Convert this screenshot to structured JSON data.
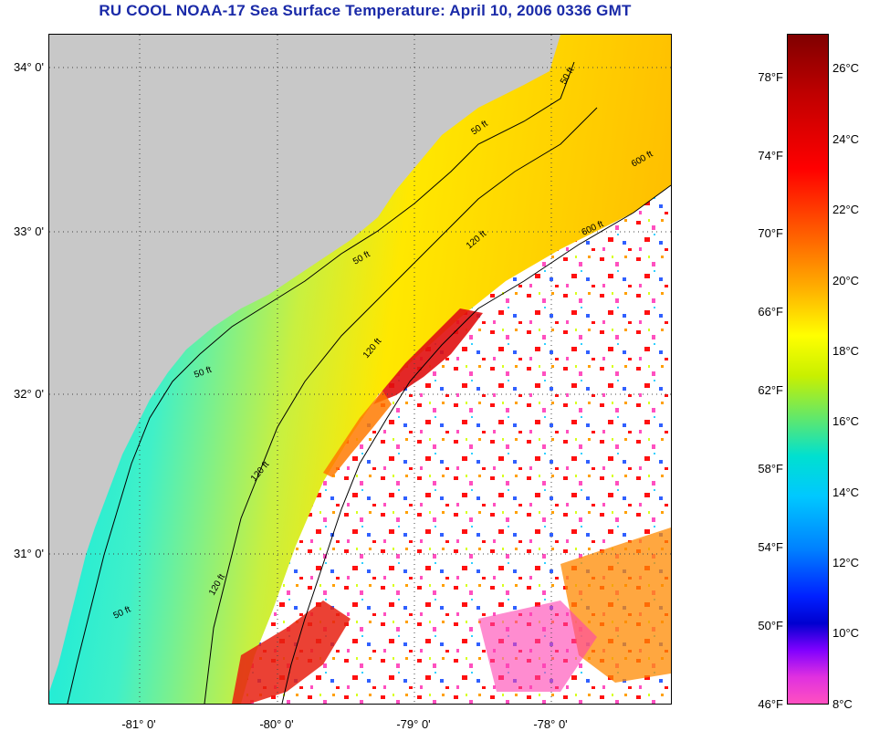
{
  "title": "RU COOL  NOAA-17  Sea Surface Temperature:  April 10, 2006 0336 GMT",
  "latitude_labels": [
    "34° 0'",
    "33° 0'",
    "32° 0'",
    "31° 0'"
  ],
  "longitude_labels": [
    "-81° 0'",
    "-80° 0'",
    "-79° 0'",
    "-78° 0'"
  ],
  "isobath_labels": [
    "50 ft",
    "50 ft",
    "50 ft",
    "50 ft",
    "50 ft",
    "120 ft",
    "120 ft",
    "120 ft",
    "120 ft",
    "600 ft",
    "600 ft"
  ],
  "colorbar": {
    "fahrenheit_labels": [
      "78°F",
      "74°F",
      "70°F",
      "66°F",
      "62°F",
      "58°F",
      "54°F",
      "50°F",
      "46°F"
    ],
    "celsius_labels": [
      "26°C",
      "24°C",
      "22°C",
      "20°C",
      "18°C",
      "16°C",
      "14°C",
      "12°C",
      "10°C",
      "8°C"
    ]
  },
  "colors": {
    "land": "#c8c8c8",
    "title": "#1a2aa8",
    "warm": "#ff0000",
    "cool": "#00e8e8",
    "cloud": "#ffffff"
  }
}
